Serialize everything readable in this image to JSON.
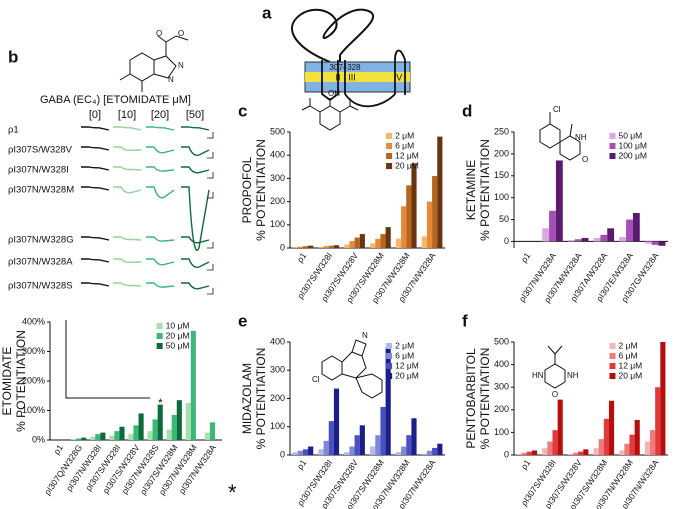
{
  "panel_a": {
    "label": "a",
    "segments": [
      "I",
      "II",
      "III",
      "IV"
    ],
    "region": "307–328"
  },
  "panel_b": {
    "label": "b",
    "header": "GABA (EC₄) [ETOMIDATE μM]",
    "columns": [
      "[0]",
      "[10]",
      "[20]",
      "[50]"
    ],
    "rows": [
      "ρ1",
      "ρI307S/W328V",
      "ρI307N/W328I",
      "ρI307N/W328M",
      "ρI307N/W328G",
      "ρI307N/W328A",
      "ρI307N/W328S"
    ],
    "structure": [
      "O",
      "O",
      "N",
      "N"
    ]
  },
  "chart_data": [
    {
      "type": "bar",
      "ylabel": [
        "ETOMIDATE",
        "% POTENTIATION"
      ],
      "categories": [
        "ρ1",
        "ρI307Q/W328G",
        "ρI307N/W328I",
        "ρI307S/W328I",
        "ρI307S/W328V",
        "ρI307N/W328S",
        "ρI307S/W328M",
        "ρI307N/W328M",
        "ρI307N/W328A"
      ],
      "series": [
        {
          "name": "10 μM",
          "color": "#a6dfae",
          "values": [
            0,
            3,
            10,
            15,
            20,
            30,
            35,
            125,
            25
          ]
        },
        {
          "name": "20 μM",
          "color": "#3bb777",
          "values": [
            0,
            5,
            20,
            30,
            50,
            70,
            85,
            370,
            60
          ]
        },
        {
          "name": "50 μM",
          "color": "#0d6b3a",
          "values": [
            0,
            8,
            25,
            45,
            90,
            120,
            135,
            null,
            null
          ]
        }
      ],
      "ylim": [
        0,
        400
      ],
      "yticks": [
        {
          "value": 0,
          "label": "0%"
        },
        {
          "value": 100,
          "label": "100%"
        },
        {
          "value": 200,
          "label": "200%"
        },
        {
          "value": 300,
          "label": "300%"
        },
        {
          "value": 400,
          "label": "400%"
        }
      ],
      "legend": "upper right",
      "annotations": [
        "*",
        "*"
      ]
    },
    {
      "type": "bar",
      "panel": "c",
      "ylabel": [
        "PROPOFOL",
        "% POTENTIATION"
      ],
      "categories": [
        "ρ1",
        "ρI307S/W328I",
        "ρI307S/W328V",
        "ρI307S/W328M",
        "ρI307N/W328M",
        "ρI307N/W328A"
      ],
      "series": [
        {
          "name": "2 μM",
          "color": "#f7b56e",
          "values": [
            5,
            5,
            15,
            20,
            40,
            50
          ]
        },
        {
          "name": "6 μM",
          "color": "#e8893a",
          "values": [
            5,
            8,
            30,
            40,
            180,
            200
          ]
        },
        {
          "name": "12 μM",
          "color": "#b5651d",
          "values": [
            8,
            10,
            45,
            60,
            270,
            310
          ]
        },
        {
          "name": "20 μM",
          "color": "#6b3410",
          "values": [
            10,
            12,
            60,
            90,
            365,
            480
          ]
        }
      ],
      "ylim": [
        0,
        500
      ],
      "yticks": [
        0,
        100,
        200,
        300,
        400,
        500
      ],
      "legend": "upper right",
      "structure": [
        "OH"
      ]
    },
    {
      "type": "bar",
      "panel": "d",
      "ylabel": [
        "KETAMINE",
        "% POTENTIATION"
      ],
      "categories": [
        "ρ1",
        "ρI307N/W328A",
        "ρI307M/W328A",
        "ρI307A/W328A",
        "ρI307E/W328A",
        "ρI307G/W328A"
      ],
      "series": [
        {
          "name": "50 μM",
          "color": "#dca5e3",
          "values": [
            0,
            30,
            3,
            8,
            10,
            -5
          ]
        },
        {
          "name": "100 μM",
          "color": "#a54fb5",
          "values": [
            0,
            70,
            5,
            15,
            50,
            -8
          ]
        },
        {
          "name": "200 μM",
          "color": "#5b1a6e",
          "values": [
            0,
            185,
            8,
            30,
            65,
            -10
          ]
        }
      ],
      "ylim": [
        -15,
        250
      ],
      "yticks": [
        0,
        50,
        100,
        150,
        200,
        250
      ],
      "legend": "upper right",
      "structure": [
        "Cl",
        "NH",
        "O"
      ]
    },
    {
      "type": "bar",
      "panel": "e",
      "ylabel": [
        "MIDAZOLAM",
        "% POTENTIATION"
      ],
      "categories": [
        "ρ1",
        "ρI307S/W328I",
        "ρI307S/W328V",
        "ρI307S/W328M",
        "ρI307N/W328M",
        "ρI307N/W328A"
      ],
      "series": [
        {
          "name": "2 μM",
          "color": "#b3b8e8",
          "values": [
            10,
            20,
            10,
            30,
            10,
            5
          ]
        },
        {
          "name": "6 μM",
          "color": "#8088d8",
          "values": [
            15,
            50,
            30,
            70,
            30,
            15
          ]
        },
        {
          "name": "12 μM",
          "color": "#4a50c0",
          "values": [
            20,
            120,
            70,
            170,
            70,
            25
          ]
        },
        {
          "name": "20 μM",
          "color": "#1c1f8a",
          "values": [
            30,
            235,
            105,
            380,
            130,
            40
          ]
        }
      ],
      "ylim": [
        0,
        400
      ],
      "yticks": [
        0,
        100,
        200,
        300,
        400
      ],
      "legend": "upper right",
      "structure": [
        "N",
        "Cl",
        "F"
      ]
    },
    {
      "type": "bar",
      "panel": "f",
      "ylabel": [
        "PENTOBARBITOL",
        "% POTENTIATION"
      ],
      "categories": [
        "ρ1",
        "ρI307S/W328I",
        "ρI307S/W328V",
        "ρI307S/W328M",
        "ρI307N/W328M",
        "ρI307N/W328A"
      ],
      "series": [
        {
          "name": "2 μM",
          "color": "#f5b5b5",
          "values": [
            5,
            30,
            5,
            30,
            20,
            60
          ]
        },
        {
          "name": "6 μM",
          "color": "#ef7a7a",
          "values": [
            10,
            60,
            10,
            70,
            50,
            110
          ]
        },
        {
          "name": "12 μM",
          "color": "#e23a3a",
          "values": [
            15,
            110,
            15,
            160,
            90,
            300
          ]
        },
        {
          "name": "20 μM",
          "color": "#b80d0d",
          "values": [
            20,
            245,
            25,
            240,
            155,
            500
          ]
        }
      ],
      "ylim": [
        0,
        500
      ],
      "yticks": [
        0,
        100,
        200,
        300,
        400,
        500
      ],
      "legend": "upper right",
      "structure": [
        "O",
        "HN",
        "NH"
      ]
    }
  ]
}
